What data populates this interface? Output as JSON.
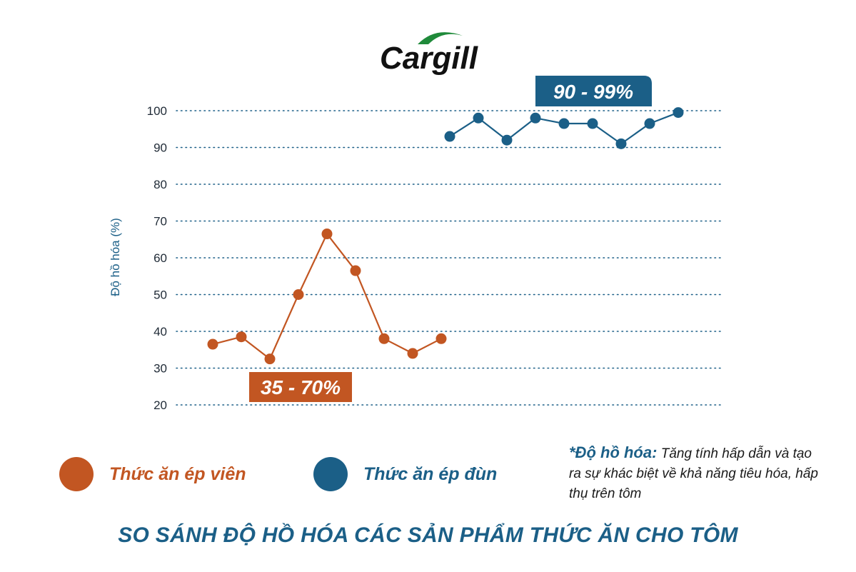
{
  "logo": {
    "text": "Cargill",
    "icon": "leaf-arc-icon"
  },
  "colors": {
    "pellet": "#c25622",
    "extruded": "#1b5f87",
    "grid": "#1b5f87",
    "text": "#1a1a1a"
  },
  "chart_data": {
    "type": "line",
    "ylabel": "Độ hồ hóa (%)",
    "ylim": [
      20,
      100
    ],
    "yticks": [
      20,
      30,
      40,
      50,
      60,
      70,
      80,
      90,
      100
    ],
    "grid": "horizontal dotted",
    "series": [
      {
        "name": "Thức ăn ép viên",
        "color": "#c25622",
        "values": [
          36.5,
          38.5,
          32.5,
          50,
          66.5,
          56.5,
          38,
          34,
          38
        ],
        "range_label": "35 - 70%"
      },
      {
        "name": "Thức ăn ép đùn",
        "color": "#1b5f87",
        "values": [
          93,
          98,
          92,
          98,
          96.5,
          96.5,
          91,
          96.5,
          99.5
        ],
        "range_label": "90 - 99%"
      }
    ]
  },
  "legend": {
    "items": [
      {
        "label": "Thức ăn ép viên",
        "color": "#c25622"
      },
      {
        "label": "Thức ăn ép đùn",
        "color": "#1b5f87"
      }
    ]
  },
  "note": {
    "title": "*Độ hồ hóa:",
    "text": "Tăng tính hấp dẫn và tạo ra sự khác biệt về khả năng tiêu hóa, hấp thụ trên tôm"
  },
  "footer": {
    "title": "SO SÁNH ĐỘ HỒ HÓA CÁC SẢN PHẨM THỨC ĂN CHO TÔM"
  }
}
